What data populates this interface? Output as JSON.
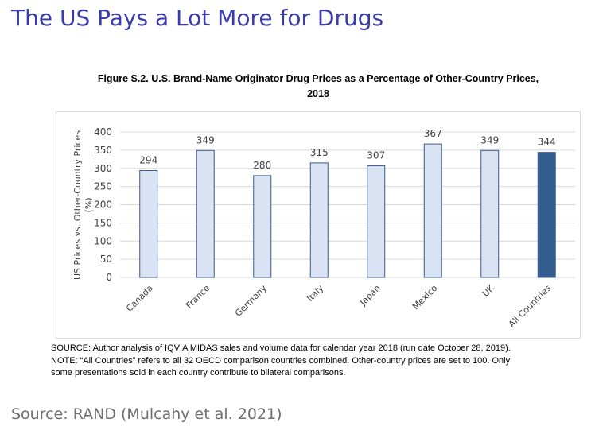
{
  "slide": {
    "title": "The US Pays a Lot More for Drugs",
    "source": "Source:  RAND (Mulcahy et al. 2021)"
  },
  "figure": {
    "title_line1": "Figure S.2. U.S. Brand-Name Originator Drug Prices as a Percentage of Other-Country Prices,",
    "title_line2": "2018",
    "notes": [
      "SOURCE: Author analysis of IQVIA MIDAS sales and volume data for calendar year 2018 (run date October 28, 2019).",
      "NOTE: “All Countries” refers to all 32 OECD comparison countries combined. Other-country prices are set to 100. Only",
      "some presentations sold in each country contribute to bilateral comparisons."
    ]
  },
  "colors": {
    "bar_fill": "#dae3f3",
    "bar_stroke": "#3b5a8e",
    "highlight_fill": "#335c8f",
    "gridline": "#d9d9d9",
    "title": "#3a3ab0"
  },
  "chart_data": {
    "type": "bar",
    "title": "Figure S.2. U.S. Brand-Name Originator Drug Prices as a Percentage of Other-Country Prices, 2018",
    "xlabel": "",
    "ylabel": "US Prices vs. Other-Country Prices (%)",
    "categories": [
      "Canada",
      "France",
      "Germany",
      "Italy",
      "Japan",
      "Mexico",
      "UK",
      "All Countries"
    ],
    "values": [
      294,
      349,
      280,
      315,
      307,
      367,
      349,
      344
    ],
    "highlighted_category": "All Countries",
    "ylim": [
      0,
      400
    ],
    "yticks": [
      0,
      50,
      100,
      150,
      200,
      250,
      300,
      350,
      400
    ],
    "grid": true,
    "data_labels": true
  }
}
